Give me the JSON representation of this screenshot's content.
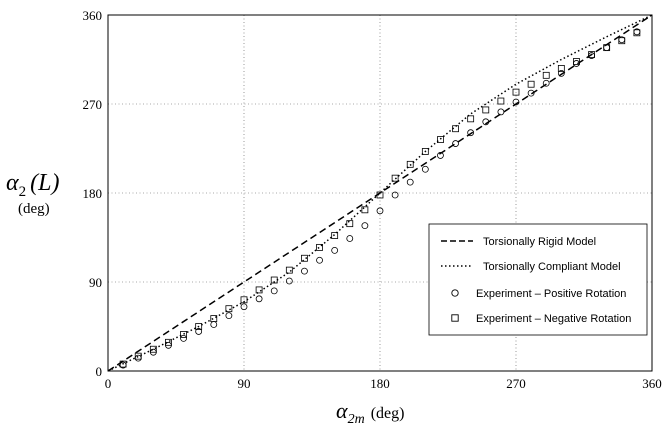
{
  "chart_data": {
    "type": "line",
    "xlim": [
      0,
      360
    ],
    "ylim": [
      0,
      360
    ],
    "xticks": [
      "0",
      "90",
      "180",
      "270",
      "360"
    ],
    "yticks": [
      "0",
      "90",
      "180",
      "270",
      "360"
    ],
    "grid": true,
    "legend_position": "bottom-right",
    "ylabel": {
      "symbol": "α",
      "sub": "2",
      "arg": "(L)",
      "unit": "(deg)"
    },
    "xlabel": {
      "symbol": "α",
      "sub": "2m",
      "unit": "(deg)"
    },
    "series": [
      {
        "name": "Torsionally Rigid Model",
        "style": "dashed",
        "x": [
          0,
          90,
          180,
          270,
          360
        ],
        "y": [
          0,
          90,
          180,
          270,
          360
        ]
      },
      {
        "name": "Torsionally Compliant Model",
        "style": "dotted",
        "x": [
          0,
          30,
          60,
          90,
          120,
          150,
          180,
          210,
          240,
          270,
          300,
          330,
          360
        ],
        "y": [
          0,
          22,
          45,
          70,
          100,
          138,
          180,
          222,
          260,
          290,
          315,
          338,
          360
        ]
      },
      {
        "name": "Experiment – Positive Rotation",
        "marker": "circle",
        "x": [
          10,
          20,
          30,
          40,
          50,
          60,
          70,
          80,
          90,
          100,
          110,
          120,
          130,
          140,
          150,
          160,
          170,
          180,
          190,
          200,
          210,
          220,
          230,
          240,
          250,
          260,
          270,
          280,
          290,
          300,
          310,
          320,
          330,
          340,
          350
        ],
        "y": [
          6,
          13,
          19,
          26,
          33,
          40,
          47,
          56,
          65,
          73,
          81,
          91,
          101,
          112,
          122,
          134,
          147,
          162,
          178,
          191,
          204,
          218,
          230,
          241,
          252,
          262,
          272,
          281,
          291,
          301,
          311,
          319,
          327,
          335,
          343
        ]
      },
      {
        "name": "Experiment – Negative Rotation",
        "marker": "square",
        "x": [
          10,
          20,
          30,
          40,
          50,
          60,
          70,
          80,
          90,
          100,
          110,
          120,
          130,
          140,
          150,
          160,
          170,
          180,
          190,
          200,
          210,
          220,
          230,
          240,
          250,
          260,
          270,
          280,
          290,
          300,
          310,
          320,
          330,
          340,
          350
        ],
        "y": [
          7,
          15,
          22,
          29,
          37,
          45,
          53,
          63,
          72,
          82,
          92,
          102,
          114,
          125,
          137,
          149,
          163,
          178,
          195,
          209,
          222,
          234,
          245,
          255,
          264,
          273,
          282,
          290,
          299,
          306,
          313,
          320,
          327,
          334,
          342
        ]
      }
    ]
  }
}
